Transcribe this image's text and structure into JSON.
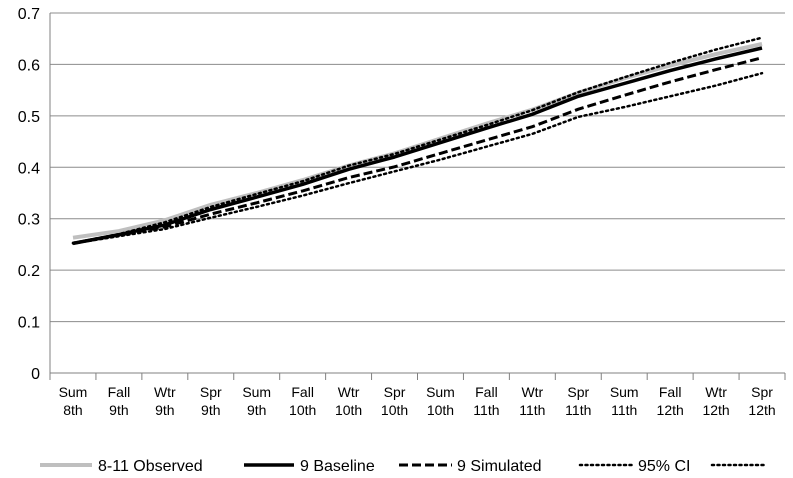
{
  "chart_data": {
    "type": "line",
    "title": "",
    "xlabel": "",
    "ylabel": "",
    "ylim": [
      0,
      0.7
    ],
    "yticks": [
      0,
      0.1,
      0.2,
      0.3,
      0.4,
      0.5,
      0.6,
      0.7
    ],
    "ytick_labels": [
      "0",
      "0.1",
      "0.2",
      "0.3",
      "0.4",
      "0.5",
      "0.6",
      "0.7"
    ],
    "grid": "horizontal",
    "legend_position": "bottom",
    "categories": [
      [
        "Sum",
        "8th"
      ],
      [
        "Fall",
        "9th"
      ],
      [
        "Wtr",
        "9th"
      ],
      [
        "Spr",
        "9th"
      ],
      [
        "Sum",
        "9th"
      ],
      [
        "Fall",
        "10th"
      ],
      [
        "Wtr",
        "10th"
      ],
      [
        "Spr",
        "10th"
      ],
      [
        "Sum",
        "10th"
      ],
      [
        "Fall",
        "11th"
      ],
      [
        "Wtr",
        "11th"
      ],
      [
        "Spr",
        "11th"
      ],
      [
        "Sum",
        "11th"
      ],
      [
        "Fall",
        "12th"
      ],
      [
        "Wtr",
        "12th"
      ],
      [
        "Spr",
        "12th"
      ]
    ],
    "series": [
      {
        "name": "8-11 Observed",
        "color": "#bfbfbf",
        "style": "solid",
        "width": 4,
        "values": [
          0.263,
          0.276,
          0.297,
          0.327,
          0.35,
          0.375,
          0.403,
          0.427,
          0.456,
          0.485,
          0.512,
          0.545,
          0.573,
          0.598,
          0.62,
          0.64
        ]
      },
      {
        "name": "9 Baseline",
        "color": "#000000",
        "style": "solid",
        "width": 3.5,
        "values": [
          0.252,
          0.269,
          0.288,
          0.318,
          0.342,
          0.367,
          0.396,
          0.42,
          0.448,
          0.476,
          0.503,
          0.538,
          0.563,
          0.588,
          0.611,
          0.632
        ]
      },
      {
        "name": "9 Simulated",
        "color": "#000000",
        "style": "dashed",
        "width": 3,
        "values": [
          0.252,
          0.268,
          0.284,
          0.309,
          0.331,
          0.354,
          0.38,
          0.401,
          0.427,
          0.453,
          0.479,
          0.513,
          0.54,
          0.566,
          0.59,
          0.613
        ]
      },
      {
        "name": "95% CI",
        "color": "#000000",
        "style": "dotted",
        "width": 2.5,
        "values": [
          0.253,
          0.27,
          0.293,
          0.323,
          0.348,
          0.373,
          0.403,
          0.426,
          0.454,
          0.482,
          0.511,
          0.546,
          0.575,
          0.603,
          0.629,
          0.652
        ]
      },
      {
        "name": "",
        "color": "#000000",
        "style": "dotted",
        "width": 2.5,
        "values": [
          0.252,
          0.266,
          0.28,
          0.302,
          0.323,
          0.345,
          0.369,
          0.392,
          0.415,
          0.44,
          0.465,
          0.498,
          0.517,
          0.538,
          0.559,
          0.583
        ]
      }
    ]
  }
}
